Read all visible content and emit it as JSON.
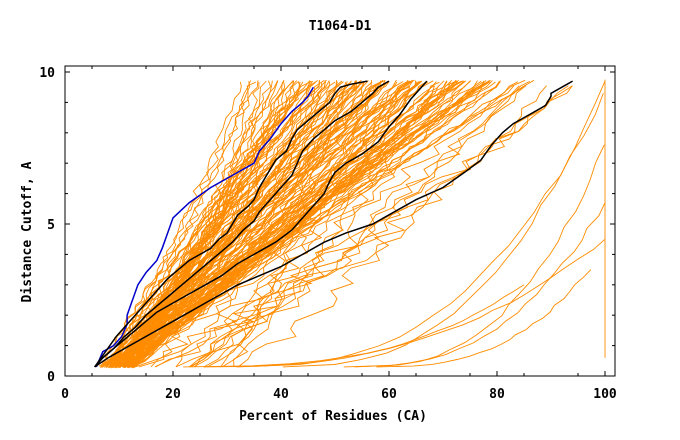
{
  "chart_data": {
    "type": "line",
    "title": "T1064-D1",
    "xlabel": "Percent of Residues (CA)",
    "ylabel": "Distance Cutoff, A",
    "xlim": [
      0,
      100
    ],
    "ylim": [
      0,
      10
    ],
    "x_ticks": [
      "0",
      "20",
      "40",
      "60",
      "80",
      "100"
    ],
    "y_ticks": [
      "0",
      "5",
      "10"
    ],
    "grid": false,
    "colors": {
      "background_models": "#ff8c00",
      "highlight_black": "#000000",
      "highlight_blue": "#0000cc",
      "axes": "#000000"
    },
    "series": [
      {
        "color": "#0000cc",
        "x": [
          5.8,
          7,
          9,
          10.5,
          11.5,
          11.5,
          12.5,
          13.5,
          15,
          17,
          18,
          19,
          20,
          23,
          27,
          31,
          35,
          36,
          38,
          40,
          42,
          44,
          45,
          46
        ],
        "y": [
          0.3,
          0.8,
          1.0,
          1.3,
          1.7,
          2.0,
          2.5,
          3.0,
          3.4,
          3.8,
          4.2,
          4.7,
          5.2,
          5.7,
          6.2,
          6.6,
          7.0,
          7.4,
          7.8,
          8.3,
          8.7,
          9.0,
          9.2,
          9.5
        ]
      },
      {
        "color": "#000000",
        "x": [
          5.5,
          7.5,
          9.5,
          11.5,
          13,
          15,
          17,
          19,
          21,
          23,
          25,
          27,
          28.5,
          30,
          31,
          32,
          34,
          35,
          36,
          37,
          38,
          39,
          41,
          42,
          43,
          45,
          47,
          49,
          50,
          51,
          53,
          56
        ],
        "y": [
          0.3,
          0.8,
          1.3,
          1.7,
          2.0,
          2.4,
          2.8,
          3.2,
          3.5,
          3.8,
          4.0,
          4.2,
          4.5,
          4.7,
          5.0,
          5.3,
          5.6,
          5.8,
          6.2,
          6.5,
          6.8,
          7.1,
          7.4,
          7.8,
          8.1,
          8.4,
          8.7,
          9.0,
          9.3,
          9.5,
          9.6,
          9.7
        ]
      },
      {
        "color": "#000000",
        "x": [
          5.5,
          7,
          9,
          11,
          13,
          15,
          17,
          19,
          21,
          23,
          25,
          27,
          29,
          31,
          33,
          35,
          36,
          38,
          40,
          42,
          43,
          44,
          46,
          48,
          50,
          53,
          55,
          57,
          58,
          60
        ],
        "y": [
          0.3,
          0.6,
          0.9,
          1.3,
          1.6,
          2.0,
          2.3,
          2.6,
          2.9,
          3.2,
          3.5,
          3.8,
          4.1,
          4.4,
          4.8,
          5.1,
          5.4,
          5.8,
          6.2,
          6.6,
          7.0,
          7.4,
          7.8,
          8.1,
          8.4,
          8.7,
          9.0,
          9.3,
          9.5,
          9.7
        ]
      },
      {
        "color": "#000000",
        "x": [
          5.5,
          7,
          9,
          11,
          13,
          15,
          17,
          20,
          23,
          26,
          29,
          32,
          35,
          39,
          42,
          44,
          46,
          48,
          49,
          50,
          52,
          55,
          58,
          60,
          62,
          64,
          66,
          67
        ],
        "y": [
          0.3,
          0.6,
          0.9,
          1.2,
          1.5,
          1.8,
          2.1,
          2.4,
          2.7,
          3.0,
          3.3,
          3.7,
          4.0,
          4.4,
          4.8,
          5.2,
          5.6,
          6.0,
          6.4,
          6.7,
          7.0,
          7.3,
          7.7,
          8.2,
          8.6,
          9.1,
          9.5,
          9.7
        ]
      },
      {
        "color": "#000000",
        "x": [
          5.5,
          8,
          11,
          14,
          17,
          20,
          23,
          26,
          29,
          32,
          36,
          40,
          44,
          48,
          52,
          57,
          61,
          65,
          70,
          74,
          77,
          79,
          81,
          83,
          86,
          89,
          90,
          90,
          93,
          94
        ],
        "y": [
          0.3,
          0.6,
          0.9,
          1.2,
          1.5,
          1.8,
          2.1,
          2.4,
          2.7,
          3.0,
          3.3,
          3.6,
          4.0,
          4.4,
          4.7,
          5.0,
          5.4,
          5.8,
          6.2,
          6.7,
          7.1,
          7.6,
          8.0,
          8.3,
          8.6,
          8.9,
          9.2,
          9.3,
          9.6,
          9.7
        ]
      }
    ]
  }
}
